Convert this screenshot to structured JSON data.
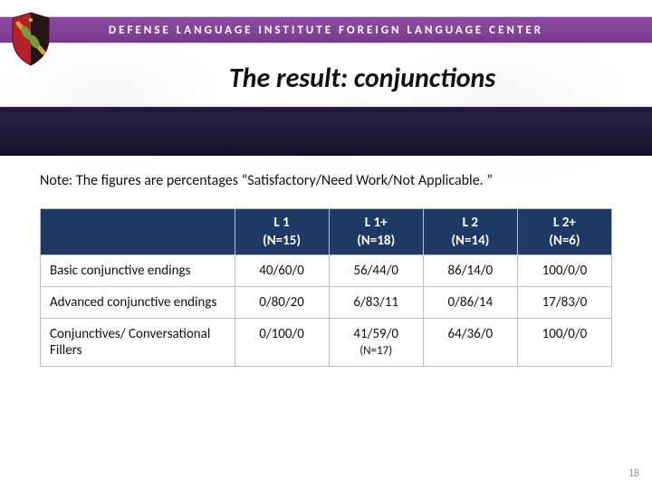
{
  "banner": {
    "text": "DEFENSE LANGUAGE INSTITUTE FOREIGN LANGUAGE CENTER"
  },
  "title": "The result: conjunctions",
  "note": "Note: The figures are percentages “Satisfactory/Need Work/Not Applicable. ”",
  "table": {
    "type": "table",
    "columns": [
      {
        "label": "",
        "width_pct": 34
      },
      {
        "label": "L 1\n(N=15)",
        "width_pct": 16.5
      },
      {
        "label": "L 1+\n(N=18)",
        "width_pct": 16.5
      },
      {
        "label": "L 2\n(N=14)",
        "width_pct": 16.5
      },
      {
        "label": "L 2+\n(N=6)",
        "width_pct": 16.5
      }
    ],
    "rows": [
      {
        "label": "Basic conjunctive endings",
        "cells": [
          "40/60/0",
          "56/44/0",
          "86/14/0",
          "100/0/0"
        ]
      },
      {
        "label": "Advanced conjunctive endings",
        "cells": [
          "0/80/20",
          "6/83/11",
          "0/86/14",
          "17/83/0"
        ]
      },
      {
        "label": "Conjunctives/ Conversational Fillers",
        "cells": [
          "0/100/0",
          "41/59/0\n(N=17)",
          "64/36/0",
          "100/0/0"
        ]
      }
    ],
    "header_bg": "#1f3965",
    "header_fg": "#ffffff",
    "cell_border": "#bfbfbf",
    "cell_bg": "#ffffff",
    "font_size_pt": 11
  },
  "colors": {
    "banner_purple_top": "#8f4aa3",
    "banner_purple_bottom": "#7a3c8e",
    "banner_border": "#d8c3e2",
    "dark_bar_top": "#2b2248",
    "dark_bar_bottom": "#14102a",
    "page_number": "#9a9a9a",
    "background": "#ffffff"
  },
  "page_number": "18",
  "crest": {
    "shield_red": "#b3212b",
    "shield_black": "#141414",
    "scroll_gold": "#d9a536",
    "leaf_green": "#7a9a3a"
  }
}
